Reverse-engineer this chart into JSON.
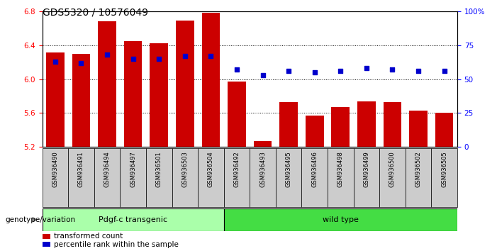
{
  "title": "GDS5320 / 10576049",
  "samples": [
    "GSM936490",
    "GSM936491",
    "GSM936494",
    "GSM936497",
    "GSM936501",
    "GSM936503",
    "GSM936504",
    "GSM936492",
    "GSM936493",
    "GSM936495",
    "GSM936496",
    "GSM936498",
    "GSM936499",
    "GSM936500",
    "GSM936502",
    "GSM936505"
  ],
  "bar_values": [
    6.31,
    6.3,
    6.68,
    6.45,
    6.42,
    6.69,
    6.78,
    5.97,
    5.27,
    5.73,
    5.57,
    5.67,
    5.74,
    5.73,
    5.63,
    5.6
  ],
  "dot_values": [
    63,
    62,
    68,
    65,
    65,
    67,
    67,
    57,
    53,
    56,
    55,
    56,
    58,
    57,
    56,
    56
  ],
  "ylim": [
    5.2,
    6.8
  ],
  "y2lim": [
    0,
    100
  ],
  "yticks": [
    5.2,
    5.6,
    6.0,
    6.4,
    6.8
  ],
  "y2ticks": [
    0,
    25,
    50,
    75,
    100
  ],
  "bar_color": "#CC0000",
  "dot_color": "#0000CC",
  "group1_label": "Pdgf-c transgenic",
  "group2_label": "wild type",
  "group1_count": 7,
  "group2_count": 9,
  "group1_color": "#AAFFAA",
  "group2_color": "#44DD44",
  "xlabel_left": "genotype/variation",
  "legend_bar": "transformed count",
  "legend_dot": "percentile rank within the sample",
  "tick_fontsize": 7.5,
  "title_fontsize": 10,
  "label_fontsize": 8,
  "sample_fontsize": 6
}
